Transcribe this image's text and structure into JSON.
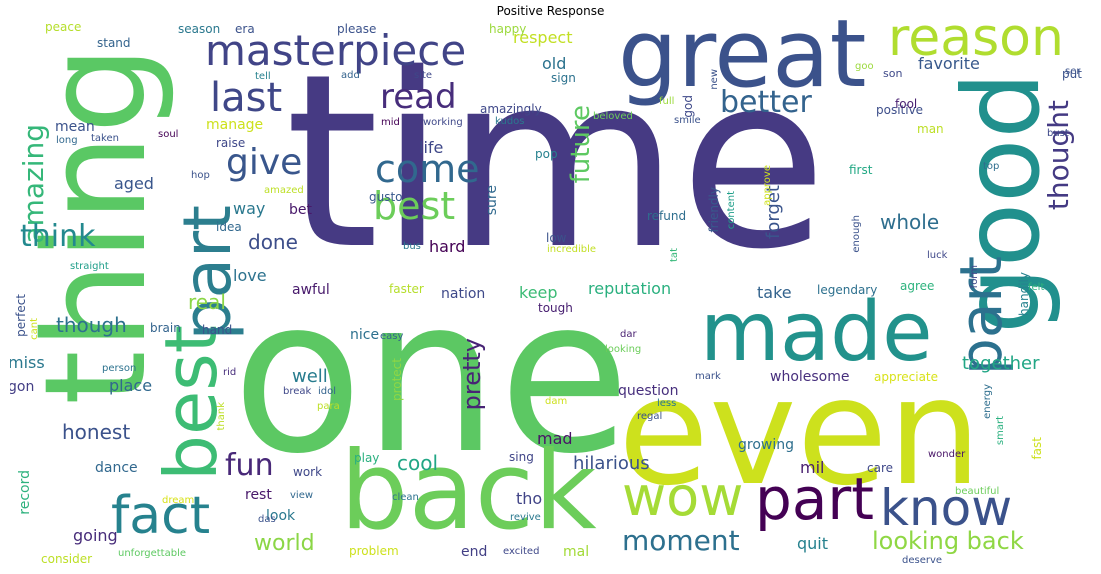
{
  "title": "Positive Response",
  "words": [
    {
      "text": "time",
      "color": "#463a83"
    },
    {
      "text": "one",
      "color": "#5cc863"
    },
    {
      "text": "thing",
      "color": "#5ac864"
    },
    {
      "text": "even",
      "color": "#cde11d"
    },
    {
      "text": "good",
      "color": "#21908d"
    },
    {
      "text": "great",
      "color": "#3b528b"
    },
    {
      "text": "back",
      "color": "#6ccd5a"
    },
    {
      "text": "made",
      "color": "#22928c"
    },
    {
      "text": "best",
      "color": "#3dbc74"
    },
    {
      "text": "part",
      "color": "#2c7e8e"
    },
    {
      "text": "reason",
      "color": "#b0dd2f"
    },
    {
      "text": "masterpiece",
      "color": "#414487"
    },
    {
      "text": "part",
      "color": "#440154"
    },
    {
      "text": "know",
      "color": "#3b528b"
    },
    {
      "text": "wow",
      "color": "#a5db36"
    },
    {
      "text": "fact",
      "color": "#26828e"
    },
    {
      "text": "last",
      "color": "#3f4788"
    },
    {
      "text": "best",
      "color": "#6ccd5a"
    },
    {
      "text": "part",
      "color": "#2c718e"
    },
    {
      "text": "come",
      "color": "#31688e"
    },
    {
      "text": "read",
      "color": "#472d7b"
    },
    {
      "text": "better",
      "color": "#33638d"
    },
    {
      "text": "amazing",
      "color": "#35b779"
    },
    {
      "text": "think",
      "color": "#23898e"
    },
    {
      "text": "give",
      "color": "#39568c"
    },
    {
      "text": "future",
      "color": "#5ec962"
    },
    {
      "text": "thought",
      "color": "#443a83"
    },
    {
      "text": "pretty",
      "color": "#482475"
    },
    {
      "text": "moment",
      "color": "#2d708e"
    },
    {
      "text": "looking back",
      "color": "#8fd744"
    },
    {
      "text": "fun",
      "color": "#482878"
    },
    {
      "text": "world",
      "color": "#8bd646"
    },
    {
      "text": "honest",
      "color": "#3b528b"
    },
    {
      "text": "whole",
      "color": "#2e6e8e"
    },
    {
      "text": "together",
      "color": "#21a685"
    },
    {
      "text": "done",
      "color": "#3d4e8a"
    },
    {
      "text": "real",
      "color": "#8bd646"
    },
    {
      "text": "cool",
      "color": "#21a685"
    },
    {
      "text": "hilarious",
      "color": "#3b528b"
    },
    {
      "text": "though",
      "color": "#2d718e"
    },
    {
      "text": "respect",
      "color": "#c2df23"
    },
    {
      "text": "favorite",
      "color": "#38598c"
    },
    {
      "text": "wholesome",
      "color": "#472f7d"
    },
    {
      "text": "forget",
      "color": "#3a548c"
    },
    {
      "text": "well",
      "color": "#287c8e"
    },
    {
      "text": "aged",
      "color": "#39568c"
    },
    {
      "text": "way",
      "color": "#2a788e"
    },
    {
      "text": "life",
      "color": "#3f4889"
    },
    {
      "text": "love",
      "color": "#2c728e"
    },
    {
      "text": "keep",
      "color": "#3bbb75"
    },
    {
      "text": "reputation",
      "color": "#2ab07f"
    },
    {
      "text": "take",
      "color": "#33638d"
    },
    {
      "text": "mil",
      "color": "#481f70"
    },
    {
      "text": "tho",
      "color": "#414487"
    },
    {
      "text": "mad",
      "color": "#481467"
    },
    {
      "text": "quit",
      "color": "#26818e"
    },
    {
      "text": "miss",
      "color": "#2a788e"
    },
    {
      "text": "hard",
      "color": "#440154"
    },
    {
      "text": "mean",
      "color": "#3b528b"
    },
    {
      "text": "nice",
      "color": "#2d708e"
    },
    {
      "text": "place",
      "color": "#31688e"
    },
    {
      "text": "growing",
      "color": "#2e6f8e"
    },
    {
      "text": "gon",
      "color": "#433e85"
    },
    {
      "text": "going",
      "color": "#472c7a"
    },
    {
      "text": "look",
      "color": "#2a788e"
    },
    {
      "text": "rest",
      "color": "#48186a"
    },
    {
      "text": "old",
      "color": "#2c728e"
    },
    {
      "text": "sure",
      "color": "#30698e"
    },
    {
      "text": "question",
      "color": "#472f7d"
    },
    {
      "text": "end",
      "color": "#423f85"
    },
    {
      "text": "mal",
      "color": "#a2da37"
    },
    {
      "text": "record",
      "color": "#2db27d"
    },
    {
      "text": "bet",
      "color": "#48186a"
    },
    {
      "text": "dance",
      "color": "#31688e"
    },
    {
      "text": "brain",
      "color": "#33638d"
    },
    {
      "text": "hand",
      "color": "#3b528b"
    },
    {
      "text": "awful",
      "color": "#481a6c"
    },
    {
      "text": "nation",
      "color": "#3e4989"
    },
    {
      "text": "tough",
      "color": "#482071"
    },
    {
      "text": "faster",
      "color": "#b5de2b"
    },
    {
      "text": "play",
      "color": "#2ab07f"
    },
    {
      "text": "sing",
      "color": "#404588"
    },
    {
      "text": "appreciate",
      "color": "#d8e219"
    },
    {
      "text": "agree",
      "color": "#2db27d"
    },
    {
      "text": "handily",
      "color": "#26828e"
    },
    {
      "text": "legendary",
      "color": "#2d708e"
    },
    {
      "text": "first",
      "color": "#22a884"
    },
    {
      "text": "positive",
      "color": "#3d4e8a"
    },
    {
      "text": "manage",
      "color": "#cde11d"
    },
    {
      "text": "gusto",
      "color": "#38598c"
    },
    {
      "text": "amazingly",
      "color": "#3f4889"
    },
    {
      "text": "sign",
      "color": "#2c728e"
    },
    {
      "text": "happy",
      "color": "#9bd93c"
    },
    {
      "text": "please",
      "color": "#3b528b"
    },
    {
      "text": "era",
      "color": "#3b528b"
    },
    {
      "text": "season",
      "color": "#2a788e"
    },
    {
      "text": "peace",
      "color": "#b5de2b"
    },
    {
      "text": "stand",
      "color": "#33638d"
    },
    {
      "text": "fool",
      "color": "#481f70"
    },
    {
      "text": "man",
      "color": "#bddf26"
    },
    {
      "text": "son",
      "color": "#3e4989"
    },
    {
      "text": "put",
      "color": "#3b528b"
    },
    {
      "text": "god",
      "color": "#3e4989"
    },
    {
      "text": "pop",
      "color": "#26818e"
    },
    {
      "text": "raise",
      "color": "#3f4889"
    },
    {
      "text": "idea",
      "color": "#31688e"
    },
    {
      "text": "low",
      "color": "#3b528b"
    },
    {
      "text": "refund",
      "color": "#2e6e8e"
    },
    {
      "text": "friendly",
      "color": "#38598c"
    },
    {
      "text": "kudos",
      "color": "#2a788e"
    },
    {
      "text": "soul",
      "color": "#440154"
    },
    {
      "text": "taken",
      "color": "#3b528b"
    },
    {
      "text": "long",
      "color": "#31688e"
    },
    {
      "text": "hop",
      "color": "#3b528b"
    },
    {
      "text": "bust",
      "color": "#3e4989"
    },
    {
      "text": "luck",
      "color": "#3f4889"
    },
    {
      "text": "felt",
      "color": "#2db27d"
    },
    {
      "text": "form",
      "color": "#3f4889"
    },
    {
      "text": "enough",
      "color": "#3b528b"
    },
    {
      "text": "content",
      "color": "#1f9e89"
    },
    {
      "text": "approve",
      "color": "#cde11d"
    },
    {
      "text": "top",
      "color": "#2e6e8e"
    },
    {
      "text": "easy",
      "color": "#33638d"
    },
    {
      "text": "smile",
      "color": "#3b528b"
    },
    {
      "text": "full",
      "color": "#9bd93c"
    },
    {
      "text": "working",
      "color": "#3f4889"
    },
    {
      "text": "mid",
      "color": "#440154"
    },
    {
      "text": "beloved",
      "color": "#6ccd5a"
    },
    {
      "text": "site",
      "color": "#3f4889"
    },
    {
      "text": "add",
      "color": "#33638d"
    },
    {
      "text": "tell",
      "color": "#26818e"
    },
    {
      "text": "new",
      "color": "#3b528b"
    },
    {
      "text": "goo",
      "color": "#9bd93c"
    },
    {
      "text": "ser",
      "color": "#3b528b"
    },
    {
      "text": "amazed",
      "color": "#bddf26"
    },
    {
      "text": "incredible",
      "color": "#c2df23"
    },
    {
      "text": "tat",
      "color": "#35b779"
    },
    {
      "text": "bus",
      "color": "#2a788e"
    },
    {
      "text": "straight",
      "color": "#1f9e89"
    },
    {
      "text": "perfect",
      "color": "#3b528b"
    },
    {
      "text": "cant",
      "color": "#cde11d"
    },
    {
      "text": "person",
      "color": "#2c728e"
    },
    {
      "text": "rid",
      "color": "#472d7b"
    },
    {
      "text": "break",
      "color": "#3f4889"
    },
    {
      "text": "idol",
      "color": "#33638d"
    },
    {
      "text": "para",
      "color": "#bddf26"
    },
    {
      "text": "protect",
      "color": "#8fd744"
    },
    {
      "text": "thank",
      "color": "#bddf26"
    },
    {
      "text": "dam",
      "color": "#cde11d"
    },
    {
      "text": "dar",
      "color": "#481f70"
    },
    {
      "text": "looking",
      "color": "#6ccd5a"
    },
    {
      "text": "mark",
      "color": "#3b528b"
    },
    {
      "text": "less",
      "color": "#2a788e"
    },
    {
      "text": "regal",
      "color": "#3b528b"
    },
    {
      "text": "energy",
      "color": "#2e6e8e"
    },
    {
      "text": "smart",
      "color": "#2ab07f"
    },
    {
      "text": "fast",
      "color": "#cde11d"
    },
    {
      "text": "wonder",
      "color": "#481467"
    },
    {
      "text": "care",
      "color": "#3f4889"
    },
    {
      "text": "work",
      "color": "#3f4889"
    },
    {
      "text": "view",
      "color": "#31688e"
    },
    {
      "text": "das",
      "color": "#3b528b"
    },
    {
      "text": "clean",
      "color": "#2c728e"
    },
    {
      "text": "dream",
      "color": "#d8e219"
    },
    {
      "text": "revive",
      "color": "#2a788e"
    },
    {
      "text": "problem",
      "color": "#cde11d"
    },
    {
      "text": "excited",
      "color": "#3f4889"
    },
    {
      "text": "consider",
      "color": "#bddf26"
    },
    {
      "text": "unforgettable",
      "color": "#5ec962"
    },
    {
      "text": "deserve",
      "color": "#3b528b"
    },
    {
      "text": "beautiful",
      "color": "#6ccd5a"
    }
  ]
}
